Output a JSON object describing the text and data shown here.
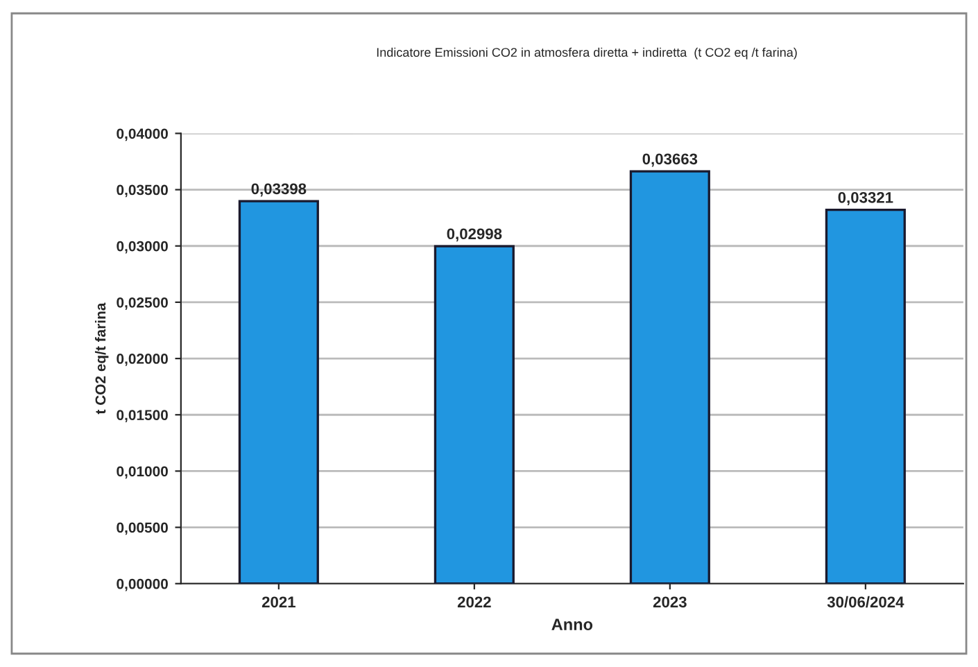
{
  "chart_data": {
    "type": "bar",
    "title": "Indicatore Emissioni CO2 in atmosfera diretta + indiretta  (t CO2 eq /t farina)",
    "xlabel": "Anno",
    "ylabel": "t CO2 eq/t farina",
    "categories": [
      "2021",
      "2022",
      "2023",
      "30/06/2024"
    ],
    "values": [
      0.03398,
      0.02998,
      0.03663,
      0.03321
    ],
    "value_labels": [
      "0,03398",
      "0,02998",
      "0,03663",
      "0,03321"
    ],
    "color": "#2196e0",
    "ylim": [
      0,
      0.04
    ],
    "yticks": [
      {
        "value": 0,
        "label": "0,00000"
      },
      {
        "value": 0.005,
        "label": "0,00500"
      },
      {
        "value": 0.01,
        "label": "0,01000"
      },
      {
        "value": 0.015,
        "label": "0,01500"
      },
      {
        "value": 0.02,
        "label": "0,02000"
      },
      {
        "value": 0.025,
        "label": "0,02500"
      },
      {
        "value": 0.03,
        "label": "0,03000"
      },
      {
        "value": 0.035,
        "label": "0,03500"
      },
      {
        "value": 0.04,
        "label": "0,04000"
      }
    ],
    "grid": "y",
    "legend": false
  }
}
